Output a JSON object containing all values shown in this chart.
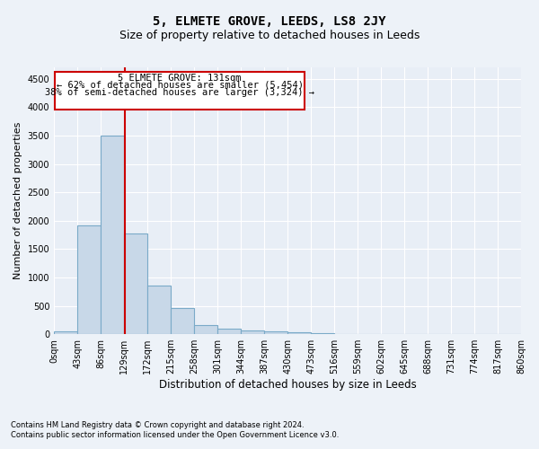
{
  "title": "5, ELMETE GROVE, LEEDS, LS8 2JY",
  "subtitle": "Size of property relative to detached houses in Leeds",
  "xlabel": "Distribution of detached houses by size in Leeds",
  "ylabel": "Number of detached properties",
  "annotation_line1": "5 ELMETE GROVE: 131sqm",
  "annotation_line2": "← 62% of detached houses are smaller (5,454)",
  "annotation_line3": "38% of semi-detached houses are larger (3,324) →",
  "property_size_sqm": 131,
  "footnote1": "Contains HM Land Registry data © Crown copyright and database right 2024.",
  "footnote2": "Contains public sector information licensed under the Open Government Licence v3.0.",
  "bin_edges": [
    0,
    43,
    86,
    129,
    172,
    215,
    258,
    301,
    344,
    387,
    430,
    473,
    516,
    559,
    602,
    645,
    688,
    731,
    774,
    817,
    860
  ],
  "bar_heights": [
    50,
    1920,
    3500,
    1780,
    850,
    460,
    165,
    100,
    65,
    55,
    35,
    20,
    10,
    8,
    5,
    3,
    2,
    1,
    1,
    0
  ],
  "bar_color": "#c8d8e8",
  "bar_edgecolor": "#7aaac8",
  "redline_x": 131,
  "ylim": [
    0,
    4700
  ],
  "yticks": [
    0,
    500,
    1000,
    1500,
    2000,
    2500,
    3000,
    3500,
    4000,
    4500
  ],
  "bg_color": "#edf2f8",
  "plot_bg_color": "#e8eef6",
  "grid_color": "#ffffff",
  "annotation_box_color": "#cc0000",
  "title_fontsize": 10,
  "subtitle_fontsize": 9,
  "tick_fontsize": 7,
  "ylabel_fontsize": 8,
  "xlabel_fontsize": 8.5,
  "footnote_fontsize": 6
}
